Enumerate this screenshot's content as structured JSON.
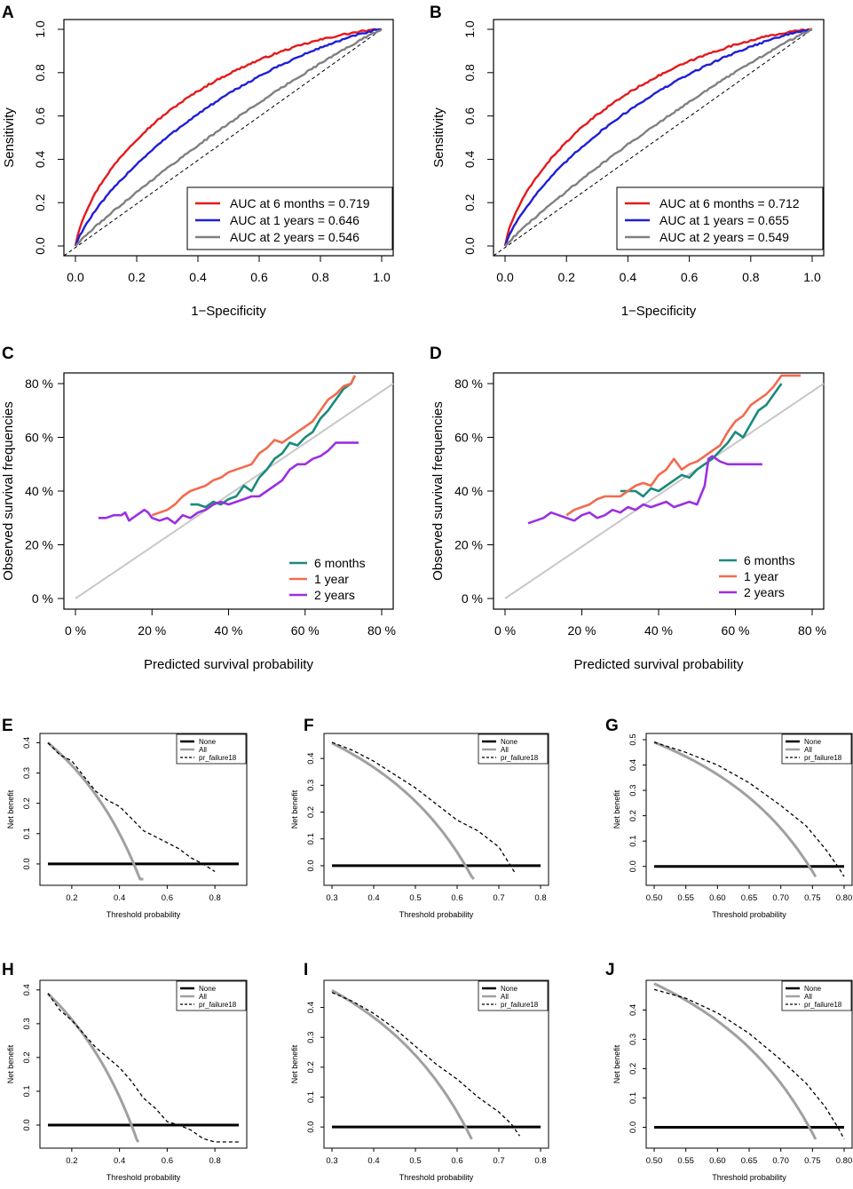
{
  "chart_data": [
    {
      "panel": "A",
      "type": "line",
      "xlabel": "1−Specificity",
      "ylabel": "Sensitivity",
      "xlim": [
        0,
        1
      ],
      "ylim": [
        0,
        1
      ],
      "xticks": [
        "0.0",
        "0.2",
        "0.4",
        "0.6",
        "0.8",
        "1.0"
      ],
      "yticks": [
        "0.0",
        "0.2",
        "0.4",
        "0.6",
        "0.8",
        "1.0"
      ],
      "reference_line": "diagonal",
      "legend_position": "bottom-right",
      "series": [
        {
          "name": "AUC at 6 months = 0.719",
          "color": "#e41a1c",
          "auc": 0.719
        },
        {
          "name": "AUC at 1 years = 0.646",
          "color": "#1f1fd6",
          "auc": 0.646
        },
        {
          "name": "AUC at 2 years = 0.546",
          "color": "#808080",
          "auc": 0.546
        }
      ]
    },
    {
      "panel": "B",
      "type": "line",
      "xlabel": "1−Specificity",
      "ylabel": "Sensitivity",
      "xlim": [
        0,
        1
      ],
      "ylim": [
        0,
        1
      ],
      "xticks": [
        "0.0",
        "0.2",
        "0.4",
        "0.6",
        "0.8",
        "1.0"
      ],
      "yticks": [
        "0.0",
        "0.2",
        "0.4",
        "0.6",
        "0.8",
        "1.0"
      ],
      "reference_line": "diagonal",
      "legend_position": "bottom-right",
      "series": [
        {
          "name": "AUC at 6 months = 0.712",
          "color": "#e41a1c",
          "auc": 0.712
        },
        {
          "name": "AUC at 1 years = 0.655",
          "color": "#1f1fd6",
          "auc": 0.655
        },
        {
          "name": "AUC at 2 years = 0.549",
          "color": "#808080",
          "auc": 0.549
        }
      ]
    },
    {
      "panel": "C",
      "type": "line",
      "xlabel": "Predicted survival probability",
      "ylabel": "Observed survival frequencies",
      "xlim": [
        0,
        80
      ],
      "ylim": [
        0,
        80
      ],
      "xticks": [
        "0 %",
        "20 %",
        "40 %",
        "60 %",
        "80 %"
      ],
      "yticks": [
        "0 %",
        "20 %",
        "40 %",
        "60 %",
        "80 %"
      ],
      "reference_line": "diagonal",
      "legend_position": "bottom-right",
      "series": [
        {
          "name": "6 months",
          "color": "#1a8a7a",
          "x": [
            30,
            32,
            34,
            36,
            38,
            40,
            42,
            44,
            46,
            48,
            50,
            52,
            54,
            56,
            58,
            60,
            62,
            64,
            66,
            68,
            70,
            72,
            73
          ],
          "y": [
            35,
            35,
            34,
            36,
            35,
            37,
            38,
            42,
            40,
            45,
            48,
            52,
            54,
            58,
            57,
            60,
            62,
            67,
            70,
            74,
            78,
            80,
            83
          ]
        },
        {
          "name": "1 year",
          "color": "#f26b4e",
          "x": [
            20,
            22,
            24,
            26,
            28,
            30,
            32,
            34,
            36,
            38,
            40,
            42,
            44,
            46,
            48,
            50,
            52,
            54,
            56,
            58,
            60,
            62,
            64,
            66,
            68,
            70,
            72,
            73
          ],
          "y": [
            31,
            32,
            33,
            35,
            38,
            40,
            41,
            42,
            44,
            45,
            47,
            48,
            49,
            50,
            54,
            56,
            59,
            58,
            60,
            62,
            64,
            66,
            70,
            74,
            76,
            79,
            80,
            83
          ]
        },
        {
          "name": "2 years",
          "color": "#9b30e0",
          "x": [
            6,
            8,
            10,
            12,
            13,
            14,
            16,
            18,
            19,
            20,
            22,
            24,
            26,
            28,
            30,
            32,
            34,
            36,
            38,
            40,
            42,
            44,
            46,
            48,
            50,
            52,
            54,
            56,
            58,
            60,
            62,
            64,
            66,
            68,
            70,
            72,
            74
          ],
          "y": [
            30,
            30,
            31,
            31,
            32,
            29,
            31,
            33,
            32,
            30,
            29,
            30,
            28,
            31,
            30,
            32,
            33,
            35,
            36,
            35,
            36,
            37,
            38,
            38,
            40,
            42,
            44,
            48,
            50,
            50,
            52,
            53,
            55,
            58,
            58,
            58,
            58
          ]
        }
      ]
    },
    {
      "panel": "D",
      "type": "line",
      "xlabel": "Predicted survival probability",
      "ylabel": "Observed survival frequencies",
      "xlim": [
        0,
        80
      ],
      "ylim": [
        0,
        80
      ],
      "xticks": [
        "0 %",
        "20 %",
        "40 %",
        "60 %",
        "80 %"
      ],
      "yticks": [
        "0 %",
        "20 %",
        "40 %",
        "60 %",
        "80 %"
      ],
      "reference_line": "diagonal",
      "legend_position": "bottom-right",
      "series": [
        {
          "name": "6 months",
          "color": "#1a8a7a",
          "x": [
            30,
            32,
            34,
            36,
            38,
            40,
            42,
            44,
            46,
            48,
            50,
            52,
            54,
            56,
            58,
            60,
            62,
            64,
            66,
            68,
            70,
            72
          ],
          "y": [
            40,
            40,
            40,
            38,
            41,
            40,
            42,
            44,
            46,
            45,
            48,
            50,
            52,
            55,
            58,
            62,
            60,
            65,
            70,
            72,
            76,
            80
          ]
        },
        {
          "name": "1 year",
          "color": "#f26b4e",
          "x": [
            16,
            18,
            20,
            22,
            24,
            26,
            28,
            30,
            32,
            34,
            36,
            38,
            40,
            42,
            44,
            46,
            48,
            50,
            52,
            54,
            56,
            58,
            60,
            62,
            64,
            66,
            68,
            70,
            72,
            74,
            77
          ],
          "y": [
            31,
            33,
            34,
            35,
            37,
            38,
            38,
            38,
            40,
            42,
            43,
            42,
            46,
            48,
            52,
            48,
            50,
            51,
            53,
            55,
            57,
            62,
            66,
            68,
            72,
            74,
            76,
            79,
            83,
            83,
            83
          ]
        },
        {
          "name": "2 years",
          "color": "#9b30e0",
          "x": [
            6,
            8,
            10,
            12,
            14,
            16,
            18,
            20,
            22,
            24,
            26,
            28,
            30,
            32,
            34,
            36,
            38,
            40,
            42,
            44,
            46,
            48,
            50,
            52,
            53,
            54,
            56,
            58,
            60,
            62,
            64,
            67
          ],
          "y": [
            28,
            29,
            30,
            32,
            31,
            30,
            29,
            31,
            32,
            30,
            31,
            33,
            32,
            34,
            33,
            35,
            34,
            35,
            36,
            34,
            35,
            36,
            35,
            42,
            52,
            53,
            51,
            50,
            50,
            50,
            50,
            50
          ]
        }
      ]
    },
    {
      "panel": "E",
      "type": "line",
      "xlabel": "Threshold probability",
      "ylabel": "Net benefit",
      "xlim": [
        0.1,
        0.9
      ],
      "ylim": [
        -0.05,
        0.41
      ],
      "xticks": [
        "0.2",
        "0.4",
        "0.6",
        "0.8"
      ],
      "yticks": [
        "0.0",
        "0.1",
        "0.2",
        "0.3",
        "0.4"
      ],
      "legend_position": "top-right",
      "series": [
        {
          "name": "None",
          "color": "#000000",
          "style": "solid-thick",
          "x": [
            0.1,
            0.9
          ],
          "y": [
            0,
            0
          ]
        },
        {
          "name": "All",
          "color": "#a0a0a0",
          "style": "solid-thick",
          "prevalence": 0.46,
          "x": [
            0.1,
            0.5
          ]
        },
        {
          "name": "pr_failure18",
          "color": "#000000",
          "style": "dashed",
          "x": [
            0.1,
            0.15,
            0.2,
            0.25,
            0.3,
            0.35,
            0.4,
            0.45,
            0.5,
            0.55,
            0.6,
            0.65,
            0.7,
            0.75,
            0.8
          ],
          "y": [
            0.4,
            0.36,
            0.34,
            0.29,
            0.24,
            0.21,
            0.19,
            0.15,
            0.11,
            0.09,
            0.07,
            0.05,
            0.02,
            0.0,
            -0.025
          ]
        }
      ]
    },
    {
      "panel": "F",
      "type": "line",
      "xlabel": "Threshold probability",
      "ylabel": "Net benefit",
      "xlim": [
        0.3,
        0.8
      ],
      "ylim": [
        -0.05,
        0.47
      ],
      "xticks": [
        "0.3",
        "0.4",
        "0.5",
        "0.6",
        "0.7",
        "0.8"
      ],
      "yticks": [
        "0.0",
        "0.1",
        "0.2",
        "0.3",
        "0.4"
      ],
      "legend_position": "top-right",
      "series": [
        {
          "name": "None",
          "color": "#000000",
          "style": "solid-thick",
          "x": [
            0.3,
            0.8
          ],
          "y": [
            0,
            0
          ]
        },
        {
          "name": "All",
          "color": "#a0a0a0",
          "style": "solid-thick",
          "prevalence": 0.62,
          "x": [
            0.3,
            0.64
          ]
        },
        {
          "name": "pr_failure18",
          "color": "#000000",
          "style": "dashed",
          "x": [
            0.3,
            0.35,
            0.4,
            0.45,
            0.5,
            0.55,
            0.6,
            0.65,
            0.7,
            0.72,
            0.74
          ],
          "y": [
            0.46,
            0.43,
            0.39,
            0.34,
            0.29,
            0.23,
            0.17,
            0.13,
            0.07,
            0.02,
            -0.03
          ]
        }
      ]
    },
    {
      "panel": "G",
      "type": "line",
      "xlabel": "Threshold probability",
      "ylabel": "Net benefit",
      "xlim": [
        0.5,
        0.8
      ],
      "ylim": [
        -0.05,
        0.5
      ],
      "xticks": [
        "0.50",
        "0.55",
        "0.60",
        "0.65",
        "0.70",
        "0.75",
        "0.80"
      ],
      "yticks": [
        "0.0",
        "0.1",
        "0.2",
        "0.3",
        "0.4",
        "0.5"
      ],
      "legend_position": "top-right",
      "series": [
        {
          "name": "None",
          "color": "#000000",
          "style": "solid-thick",
          "x": [
            0.5,
            0.8
          ],
          "y": [
            0,
            0
          ]
        },
        {
          "name": "All",
          "color": "#a0a0a0",
          "style": "solid-thick",
          "prevalence": 0.745,
          "x": [
            0.5,
            0.755
          ]
        },
        {
          "name": "pr_failure18",
          "color": "#000000",
          "style": "dashed",
          "x": [
            0.5,
            0.55,
            0.6,
            0.65,
            0.7,
            0.74,
            0.77,
            0.79,
            0.8
          ],
          "y": [
            0.49,
            0.45,
            0.4,
            0.33,
            0.24,
            0.16,
            0.07,
            0.0,
            -0.04
          ]
        }
      ]
    },
    {
      "panel": "H",
      "type": "line",
      "xlabel": "Threshold probability",
      "ylabel": "Net benefit",
      "xlim": [
        0.1,
        0.9
      ],
      "ylim": [
        -0.05,
        0.41
      ],
      "xticks": [
        "0.2",
        "0.4",
        "0.6",
        "0.8"
      ],
      "yticks": [
        "0.0",
        "0.1",
        "0.2",
        "0.3",
        "0.4"
      ],
      "legend_position": "top-right",
      "series": [
        {
          "name": "None",
          "color": "#000000",
          "style": "solid-thick",
          "x": [
            0.1,
            0.9
          ],
          "y": [
            0,
            0
          ]
        },
        {
          "name": "All",
          "color": "#a0a0a0",
          "style": "solid-thick",
          "prevalence": 0.45,
          "x": [
            0.1,
            0.48
          ]
        },
        {
          "name": "pr_failure18",
          "color": "#000000",
          "style": "dashed",
          "x": [
            0.1,
            0.15,
            0.2,
            0.25,
            0.3,
            0.35,
            0.4,
            0.45,
            0.5,
            0.55,
            0.6,
            0.65,
            0.7,
            0.75,
            0.8,
            0.9
          ],
          "y": [
            0.39,
            0.34,
            0.31,
            0.27,
            0.23,
            0.2,
            0.17,
            0.13,
            0.08,
            0.05,
            0.01,
            0.0,
            -0.015,
            -0.04,
            -0.06,
            -0.05
          ]
        }
      ]
    },
    {
      "panel": "I",
      "type": "line",
      "xlabel": "Threshold probability",
      "ylabel": "Net benefit",
      "xlim": [
        0.3,
        0.8
      ],
      "ylim": [
        -0.05,
        0.47
      ],
      "xticks": [
        "0.3",
        "0.4",
        "0.5",
        "0.6",
        "0.7",
        "0.8"
      ],
      "yticks": [
        "0.0",
        "0.1",
        "0.2",
        "0.3",
        "0.4"
      ],
      "legend_position": "top-right",
      "series": [
        {
          "name": "None",
          "color": "#000000",
          "style": "solid-thick",
          "x": [
            0.3,
            0.8
          ],
          "y": [
            0,
            0
          ]
        },
        {
          "name": "All",
          "color": "#a0a0a0",
          "style": "solid-thick",
          "prevalence": 0.62,
          "x": [
            0.3,
            0.635
          ]
        },
        {
          "name": "pr_failure18",
          "color": "#000000",
          "style": "dashed",
          "x": [
            0.3,
            0.35,
            0.4,
            0.45,
            0.5,
            0.55,
            0.6,
            0.65,
            0.7,
            0.73,
            0.75
          ],
          "y": [
            0.45,
            0.42,
            0.38,
            0.33,
            0.27,
            0.21,
            0.16,
            0.1,
            0.05,
            0.01,
            -0.03
          ]
        }
      ]
    },
    {
      "panel": "J",
      "type": "line",
      "xlabel": "Threshold probability",
      "ylabel": "Net benefit",
      "xlim": [
        0.5,
        0.8
      ],
      "ylim": [
        -0.05,
        0.48
      ],
      "xticks": [
        "0.50",
        "0.55",
        "0.60",
        "0.65",
        "0.70",
        "0.75",
        "0.80"
      ],
      "yticks": [
        "0.0",
        "0.1",
        "0.2",
        "0.3",
        "0.4"
      ],
      "legend_position": "top-right",
      "series": [
        {
          "name": "None",
          "color": "#000000",
          "style": "solid-thick",
          "x": [
            0.5,
            0.8
          ],
          "y": [
            0,
            0
          ]
        },
        {
          "name": "All",
          "color": "#a0a0a0",
          "style": "solid-thick",
          "prevalence": 0.745,
          "x": [
            0.5,
            0.755
          ]
        },
        {
          "name": "pr_failure18",
          "color": "#000000",
          "style": "dashed",
          "x": [
            0.5,
            0.55,
            0.6,
            0.65,
            0.7,
            0.74,
            0.77,
            0.79,
            0.8
          ],
          "y": [
            0.47,
            0.44,
            0.39,
            0.32,
            0.23,
            0.15,
            0.07,
            0.0,
            -0.04
          ]
        }
      ]
    }
  ]
}
